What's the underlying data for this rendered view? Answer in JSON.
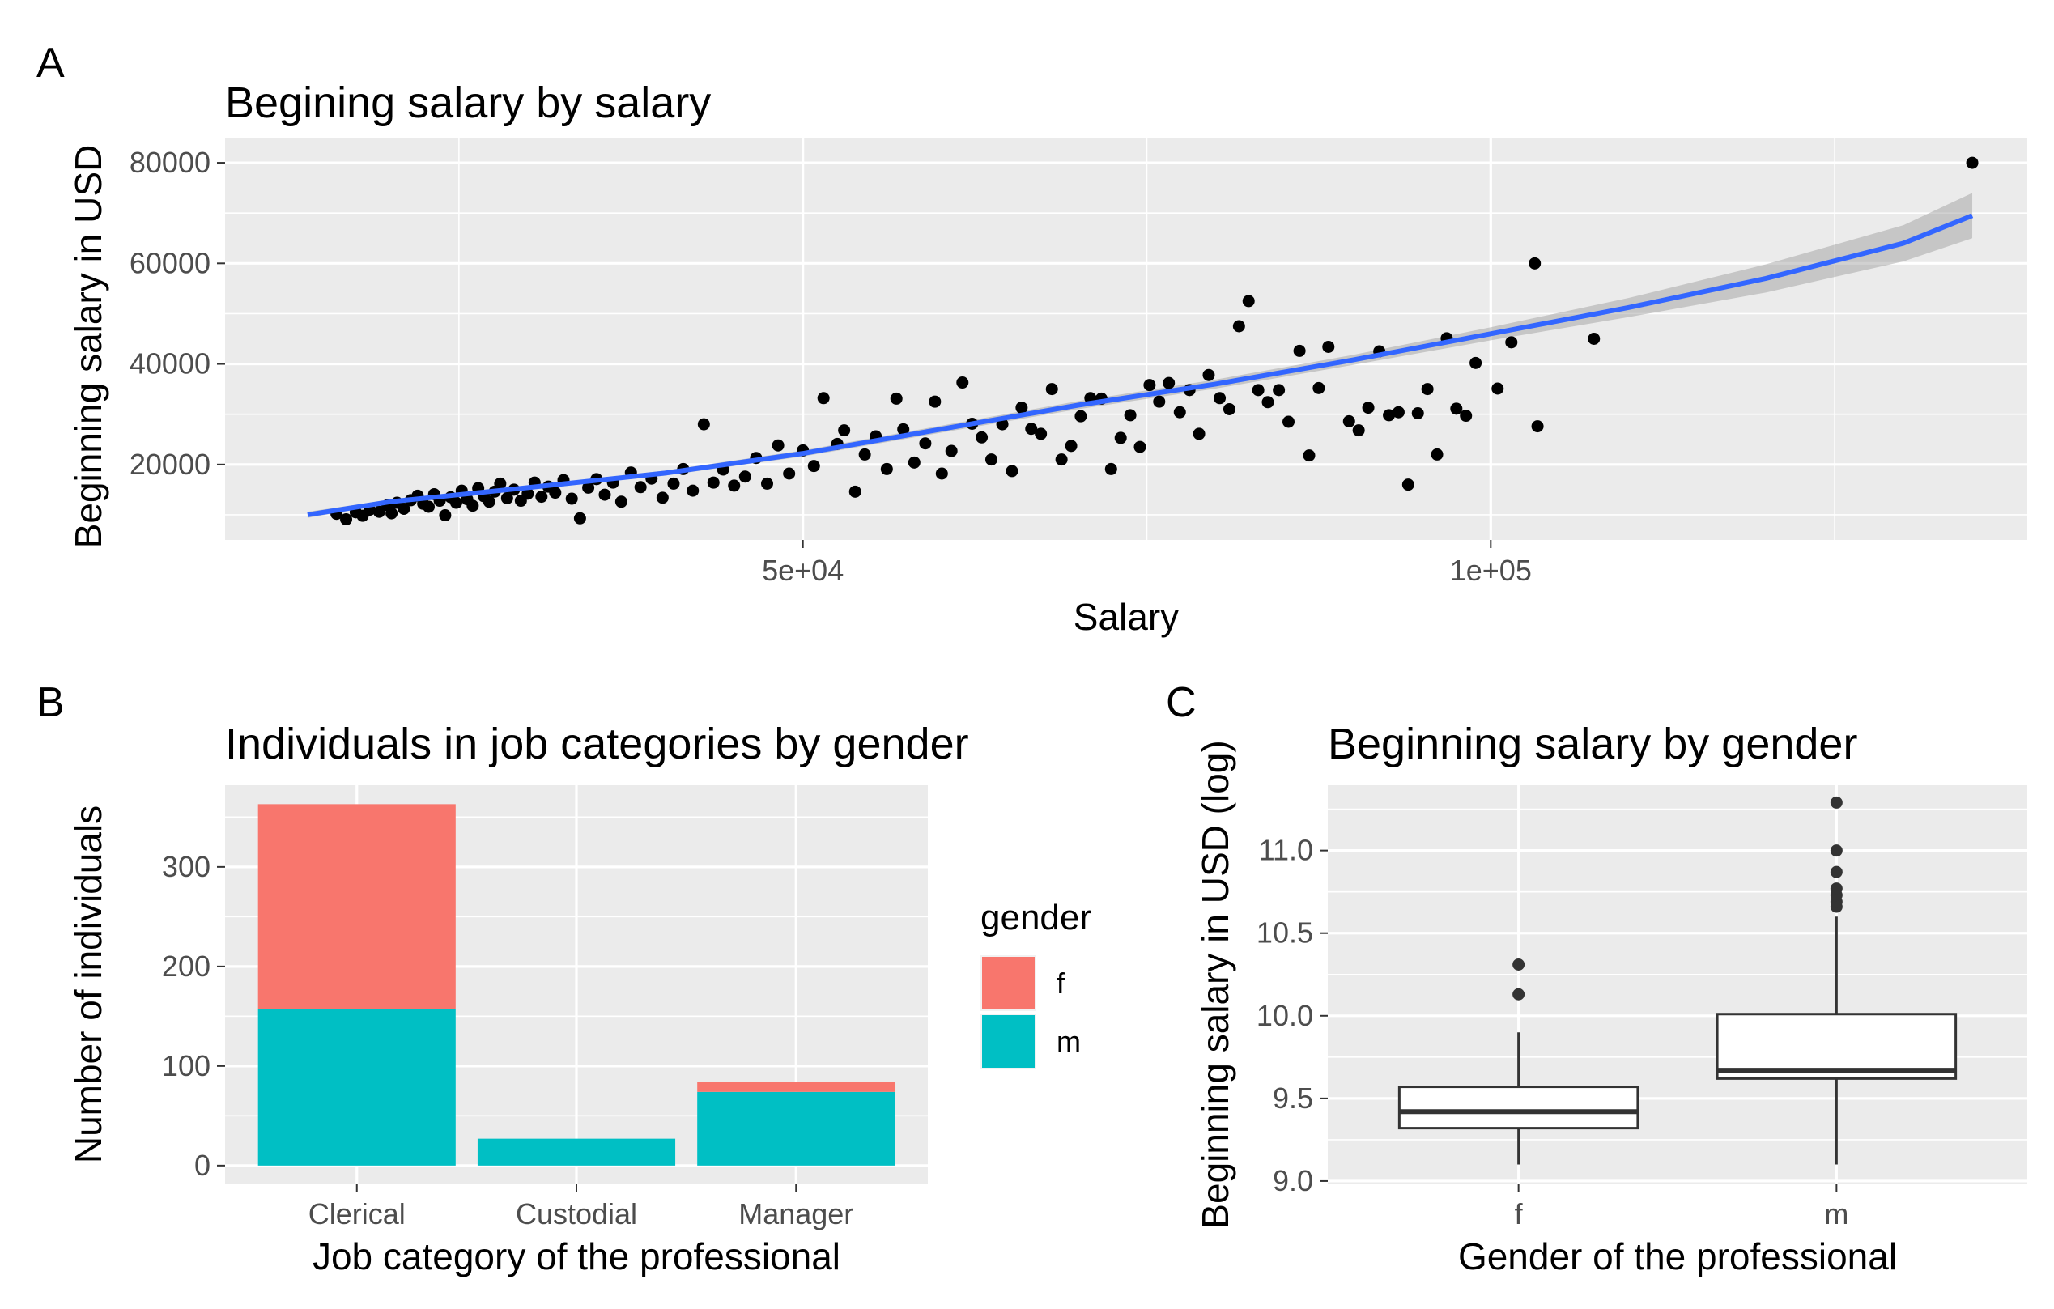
{
  "panels": {
    "a": {
      "label": "A"
    },
    "b": {
      "label": "B"
    },
    "c": {
      "label": "C"
    }
  },
  "chart_data": [
    {
      "type": "scatter",
      "title": "Begining salary by salary",
      "xlabel": "Salary",
      "ylabel": "Beginning salary in USD",
      "xlim": [
        8000,
        139000
      ],
      "ylim": [
        5000,
        85000
      ],
      "x_ticks": [
        {
          "value": 50000,
          "label": "5e+04"
        },
        {
          "value": 100000,
          "label": "1e+05"
        }
      ],
      "y_ticks": [
        {
          "value": 20000,
          "label": "20000"
        },
        {
          "value": 40000,
          "label": "40000"
        },
        {
          "value": 60000,
          "label": "60000"
        },
        {
          "value": 80000,
          "label": "80000"
        }
      ],
      "grid": true,
      "background": "#EBEBEB",
      "point_color": "#000000",
      "smooth": {
        "color": "#3366FF",
        "band_color": "#999999",
        "x": [
          14000,
          20000,
          30000,
          40000,
          50000,
          60000,
          70000,
          80000,
          90000,
          100000,
          110000,
          120000,
          130000,
          135000
        ],
        "y": [
          10000,
          12600,
          15400,
          18300,
          22200,
          27000,
          31800,
          36000,
          40800,
          46000,
          51200,
          57000,
          64000,
          69500
        ],
        "band_width": [
          600,
          400,
          400,
          500,
          600,
          700,
          800,
          900,
          1000,
          1300,
          1900,
          2800,
          3600,
          4500
        ]
      },
      "points": [
        [
          16100,
          10200
        ],
        [
          16800,
          9100
        ],
        [
          17500,
          10500
        ],
        [
          18000,
          9800
        ],
        [
          18500,
          11000
        ],
        [
          19200,
          10600
        ],
        [
          19800,
          11900
        ],
        [
          20100,
          10300
        ],
        [
          20500,
          12400
        ],
        [
          21000,
          11200
        ],
        [
          21500,
          12900
        ],
        [
          22000,
          13800
        ],
        [
          22400,
          12200
        ],
        [
          22800,
          11600
        ],
        [
          23200,
          14100
        ],
        [
          23600,
          12800
        ],
        [
          24000,
          9900
        ],
        [
          24400,
          13500
        ],
        [
          24800,
          12400
        ],
        [
          25200,
          14800
        ],
        [
          25600,
          13100
        ],
        [
          26000,
          11800
        ],
        [
          26400,
          15300
        ],
        [
          26800,
          13700
        ],
        [
          27200,
          12600
        ],
        [
          27600,
          14600
        ],
        [
          28000,
          16200
        ],
        [
          28500,
          13300
        ],
        [
          29000,
          15000
        ],
        [
          29500,
          12800
        ],
        [
          30000,
          14200
        ],
        [
          30500,
          16400
        ],
        [
          31000,
          13600
        ],
        [
          31500,
          15600
        ],
        [
          32000,
          14400
        ],
        [
          32600,
          16900
        ],
        [
          33200,
          13200
        ],
        [
          33800,
          9300
        ],
        [
          34400,
          15400
        ],
        [
          35000,
          17100
        ],
        [
          35600,
          14000
        ],
        [
          36200,
          16400
        ],
        [
          36800,
          12600
        ],
        [
          37500,
          18400
        ],
        [
          38200,
          15500
        ],
        [
          39000,
          17200
        ],
        [
          39800,
          13400
        ],
        [
          40600,
          16200
        ],
        [
          41300,
          19100
        ],
        [
          42000,
          14800
        ],
        [
          42800,
          28000
        ],
        [
          43500,
          16400
        ],
        [
          44200,
          19000
        ],
        [
          45000,
          15800
        ],
        [
          45800,
          17600
        ],
        [
          46600,
          21300
        ],
        [
          47400,
          16200
        ],
        [
          48200,
          23800
        ],
        [
          49000,
          18200
        ],
        [
          50000,
          22800
        ],
        [
          50800,
          19700
        ],
        [
          51500,
          33200
        ],
        [
          52500,
          24100
        ],
        [
          53000,
          26800
        ],
        [
          53800,
          14600
        ],
        [
          54500,
          22000
        ],
        [
          55300,
          25600
        ],
        [
          56100,
          19100
        ],
        [
          56800,
          33100
        ],
        [
          57300,
          27000
        ],
        [
          58100,
          20400
        ],
        [
          58900,
          24200
        ],
        [
          59600,
          32500
        ],
        [
          60100,
          18200
        ],
        [
          60800,
          22700
        ],
        [
          61600,
          36300
        ],
        [
          62300,
          28100
        ],
        [
          63000,
          25400
        ],
        [
          63700,
          21000
        ],
        [
          64500,
          28000
        ],
        [
          65200,
          18700
        ],
        [
          65900,
          31300
        ],
        [
          66600,
          27100
        ],
        [
          67300,
          26100
        ],
        [
          68100,
          35000
        ],
        [
          68800,
          21000
        ],
        [
          69500,
          23700
        ],
        [
          70200,
          29600
        ],
        [
          70900,
          33200
        ],
        [
          71700,
          33100
        ],
        [
          72400,
          19100
        ],
        [
          73100,
          25300
        ],
        [
          73800,
          29800
        ],
        [
          74500,
          23500
        ],
        [
          75200,
          35800
        ],
        [
          75900,
          32500
        ],
        [
          76600,
          36200
        ],
        [
          77400,
          30400
        ],
        [
          78100,
          34800
        ],
        [
          78800,
          26100
        ],
        [
          79500,
          37800
        ],
        [
          80300,
          33200
        ],
        [
          81000,
          31000
        ],
        [
          81700,
          47500
        ],
        [
          82400,
          52500
        ],
        [
          83100,
          34800
        ],
        [
          83800,
          32400
        ],
        [
          84600,
          34800
        ],
        [
          85300,
          28500
        ],
        [
          86100,
          42600
        ],
        [
          86800,
          21800
        ],
        [
          87500,
          35200
        ],
        [
          88200,
          43400
        ],
        [
          89700,
          28600
        ],
        [
          90400,
          26800
        ],
        [
          91100,
          31300
        ],
        [
          91900,
          42500
        ],
        [
          92600,
          29800
        ],
        [
          93300,
          30400
        ],
        [
          94000,
          16000
        ],
        [
          94700,
          30200
        ],
        [
          95400,
          35000
        ],
        [
          96100,
          22000
        ],
        [
          96800,
          45100
        ],
        [
          97500,
          31100
        ],
        [
          98200,
          29700
        ],
        [
          98900,
          40200
        ],
        [
          100500,
          35100
        ],
        [
          101500,
          44300
        ],
        [
          103200,
          60000
        ],
        [
          103400,
          27600
        ],
        [
          107500,
          45000
        ],
        [
          135000,
          80000
        ]
      ]
    },
    {
      "type": "bar",
      "stacked": true,
      "title": "Individuals in job categories by gender",
      "xlabel": "Job category of the professional",
      "ylabel": "Number of individuals",
      "categories": [
        "Clerical",
        "Custodial",
        "Manager"
      ],
      "ylim": [
        -18,
        382
      ],
      "y_ticks": [
        {
          "value": 0,
          "label": "0"
        },
        {
          "value": 100,
          "label": "100"
        },
        {
          "value": 200,
          "label": "200"
        },
        {
          "value": 300,
          "label": "300"
        }
      ],
      "series": [
        {
          "name": "m",
          "values": [
            157,
            27,
            74
          ],
          "color": "#00BFC4"
        },
        {
          "name": "f",
          "values": [
            206,
            0,
            10
          ],
          "color": "#F8766D"
        }
      ],
      "legend": {
        "title": "gender",
        "placement": "right",
        "order": [
          "f",
          "m"
        ]
      },
      "background": "#EBEBEB"
    },
    {
      "type": "boxplot",
      "title": "Beginning salary by gender",
      "xlabel": "Gender of the professional",
      "ylabel": "Beginning salary in USD (log)",
      "categories": [
        "f",
        "m"
      ],
      "ylim": [
        8.985,
        11.395
      ],
      "y_ticks": [
        {
          "value": 9.0,
          "label": "9.0"
        },
        {
          "value": 9.5,
          "label": "9.5"
        },
        {
          "value": 10.0,
          "label": "10.0"
        },
        {
          "value": 10.5,
          "label": "10.5"
        },
        {
          "value": 11.0,
          "label": "11.0"
        }
      ],
      "boxes": [
        {
          "name": "f",
          "whisker_low": 9.1,
          "q1": 9.32,
          "median": 9.42,
          "q3": 9.57,
          "whisker_high": 9.9,
          "outliers": [
            10.13,
            10.31
          ]
        },
        {
          "name": "m",
          "whisker_low": 9.1,
          "q1": 9.62,
          "median": 9.67,
          "q3": 10.01,
          "whisker_high": 10.6,
          "outliers": [
            10.66,
            10.69,
            10.73,
            10.77,
            10.87,
            11.0,
            11.29
          ]
        }
      ],
      "background": "#EBEBEB"
    }
  ]
}
